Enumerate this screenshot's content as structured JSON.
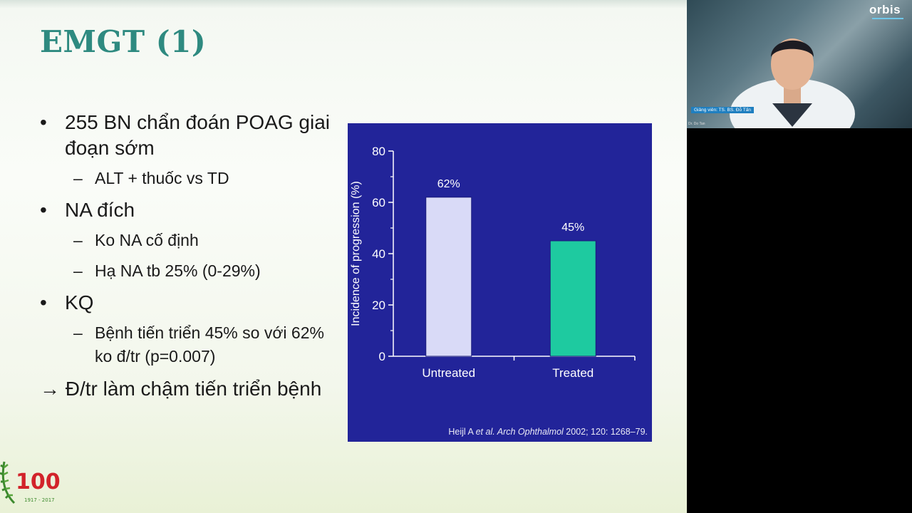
{
  "slide": {
    "title": "EMGT (1)",
    "bullets": [
      {
        "level": 1,
        "marker": "•",
        "text": "255 BN chẩn đoán POAG giai đoạn sớm"
      },
      {
        "level": 2,
        "marker": "–",
        "text": "ALT + thuốc vs TD"
      },
      {
        "level": 1,
        "marker": "•",
        "text": "NA đích"
      },
      {
        "level": 2,
        "marker": "–",
        "text": "Ko NA cố định"
      },
      {
        "level": 2,
        "marker": "–",
        "text": "Hạ NA tb 25% (0-29%)"
      },
      {
        "level": 1,
        "marker": "•",
        "text": "KQ"
      },
      {
        "level": 2,
        "marker": "–",
        "text": "Bệnh tiến triển 45% so với 62% ko đ/tr (p=0.007)"
      }
    ],
    "conclusion": "→ Đ/tr làm chậm tiến triển bệnh",
    "logo_text": "100",
    "logo_years": "1917 - 2017",
    "colors": {
      "title": "#2e8a80",
      "chart_bg": "#222499",
      "bar_untreated": "#d9daf7",
      "bar_treated": "#1ecaa0"
    }
  },
  "chart_data": {
    "type": "bar",
    "categories": [
      "Untreated",
      "Treated"
    ],
    "values": [
      62,
      45
    ],
    "data_labels": [
      "62%",
      "45%"
    ],
    "ylabel": "Incidence of progression (%)",
    "xlabel": "",
    "ylim": [
      0,
      80
    ],
    "yticks": [
      0,
      20,
      40,
      60,
      80
    ],
    "grid": false,
    "citation_parts": {
      "author": "Heijl A ",
      "etal": "et al.",
      "journal": " Arch Ophthalmol",
      "rest": " 2002; 120: 1268–79."
    }
  },
  "video": {
    "brand": "orbis",
    "caption": "Giảng viên: TS. BS. Đỗ Tấn",
    "name_tag": "Dr. Do Tan"
  }
}
